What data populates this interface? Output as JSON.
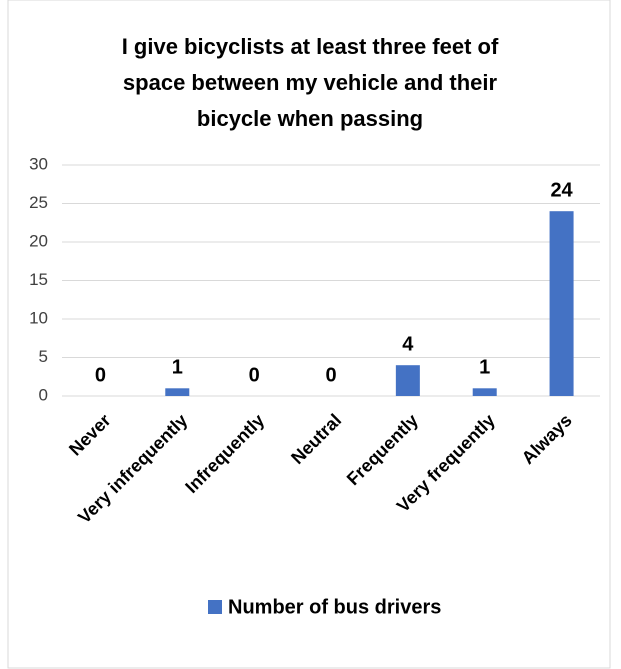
{
  "chart_data": {
    "type": "bar",
    "title": [
      "I give bicyclists at least three feet of",
      "space between my vehicle and their",
      "bicycle when passing"
    ],
    "categories": [
      "Never",
      "Very infrequently",
      "Infrequently",
      "Neutral",
      "Frequently",
      "Very frequently",
      "Always"
    ],
    "series": [
      {
        "name": "Number of bus drivers",
        "color": "#4472c4",
        "values": [
          0,
          1,
          0,
          0,
          4,
          1,
          24
        ]
      }
    ],
    "ylim": [
      0,
      30
    ],
    "yticks": [
      0,
      5,
      10,
      15,
      20,
      25,
      30
    ],
    "grid": true,
    "legend": "bottom"
  }
}
